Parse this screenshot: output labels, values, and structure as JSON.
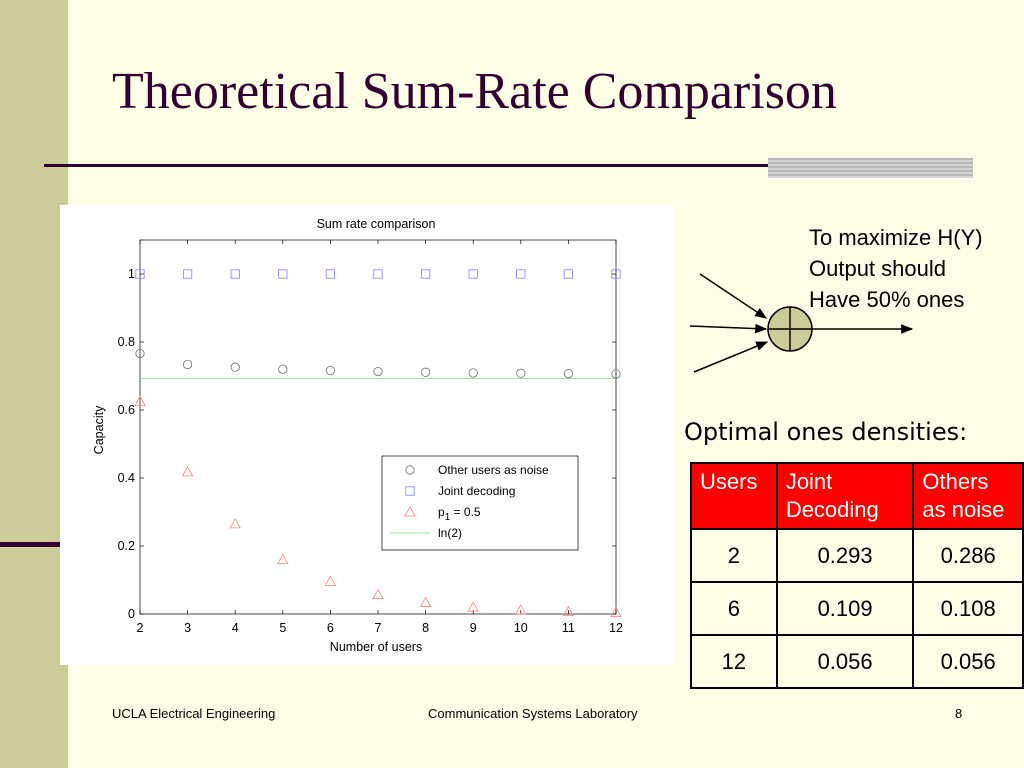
{
  "slide": {
    "title": "Theoretical Sum-Rate Comparison",
    "note_lines": [
      "To maximize H(Y)",
      "Output should",
      "Have 50% ones"
    ],
    "table_title": "Optimal ones densities:",
    "table": {
      "headers": [
        "Users",
        "Joint Decoding",
        "Others as noise"
      ],
      "header_lines": [
        [
          "Users"
        ],
        [
          "Joint",
          "Decoding"
        ],
        [
          "Others",
          "as noise"
        ]
      ],
      "rows": [
        [
          "2",
          "0.293",
          "0.286"
        ],
        [
          "6",
          "0.109",
          "0.108"
        ],
        [
          "12",
          "0.056",
          "0.056"
        ]
      ]
    },
    "footer": {
      "left": "UCLA Electrical Engineering",
      "center": "Communication Systems Laboratory",
      "right": "8"
    },
    "colors": {
      "background": "#fefee6",
      "accent_bar": "#cccc99",
      "title": "#330033",
      "table_header": "#ff0000",
      "diagram_circle": "#cccc99"
    }
  },
  "chart_data": {
    "type": "scatter",
    "title": "Sum rate comparison",
    "xlabel": "Number of users",
    "ylabel": "Capacity",
    "xlim": [
      2,
      12
    ],
    "ylim": [
      0,
      1.1
    ],
    "xticks": [
      2,
      3,
      4,
      5,
      6,
      7,
      8,
      9,
      10,
      11,
      12
    ],
    "yticks": [
      0,
      0.2,
      0.4,
      0.6,
      0.8,
      1
    ],
    "ytick_labels": [
      "0",
      "0.2",
      "0.4",
      "0.6",
      "0.8",
      "1"
    ],
    "x": [
      2,
      3,
      4,
      5,
      6,
      7,
      8,
      9,
      10,
      11,
      12
    ],
    "series": [
      {
        "name": "Other users as noise",
        "marker": "circle",
        "color": "#6e6e6e",
        "values": [
          0.766,
          0.734,
          0.726,
          0.72,
          0.716,
          0.713,
          0.711,
          0.709,
          0.708,
          0.707,
          0.706
        ]
      },
      {
        "name": "Joint decoding",
        "marker": "square",
        "color": "#7f7fff",
        "values": [
          1,
          1,
          1,
          1,
          1,
          1,
          1,
          1,
          1,
          1,
          1
        ]
      },
      {
        "name": "p1 = 0.5",
        "marker": "triangle",
        "color": "#ff7f7f",
        "values": [
          0.625,
          0.418,
          0.265,
          0.16,
          0.096,
          0.057,
          0.034,
          0.02,
          0.012,
          0.007,
          0.004
        ]
      },
      {
        "name": "ln(2)",
        "marker": "line",
        "color": "#7fdf7f",
        "value": 0.693
      }
    ],
    "legend": {
      "position": "lower-right",
      "entries": [
        {
          "marker": "circle",
          "text": "Other users as noise"
        },
        {
          "marker": "square",
          "text": "Joint decoding"
        },
        {
          "marker": "triangle",
          "text_main": "p",
          "text_sub": "1",
          "text_rest": " = 0.5"
        },
        {
          "marker": "line",
          "text": "ln(2)"
        }
      ]
    },
    "grid": false
  }
}
